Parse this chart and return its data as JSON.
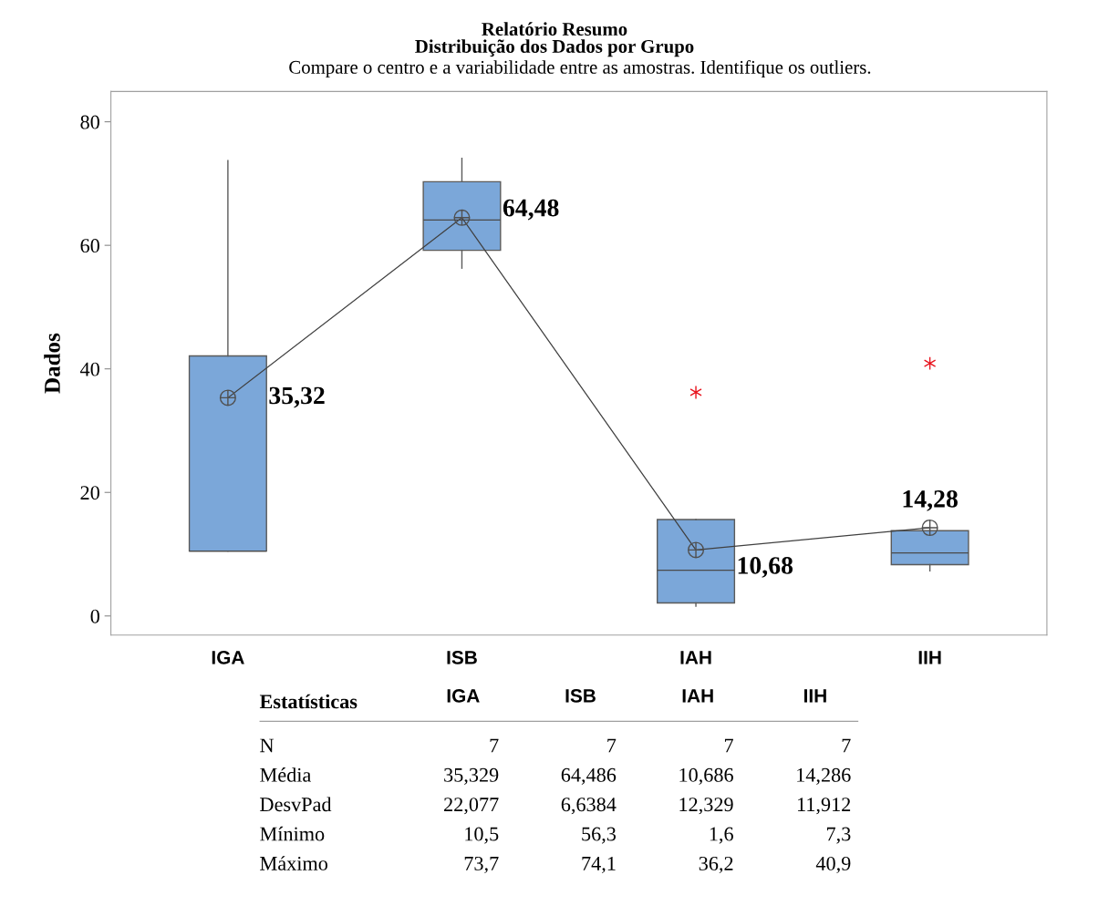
{
  "chart_data": [
    {
      "type": "box",
      "title": "Relatório Resumo",
      "subtitle": "Distribuição dos Dados por Grupo",
      "annotations": [
        "Compare o centro e a variabilidade entre as amostras. Identifique os outliers."
      ],
      "ylabel": "Dados",
      "categories": [
        "IGA",
        "ISB",
        "IAH",
        "IIH"
      ],
      "ylim": [
        -3.1,
        84.9
      ],
      "yticks": [
        0,
        20,
        40,
        60,
        80
      ],
      "grid": false,
      "series": [
        {
          "type": "box",
          "color": "#7ba7d9",
          "boxes": [
            {
              "low": 10.5,
              "q1": 10.5,
              "median": 10.5,
              "q3": 42.1,
              "high": 73.7
            },
            {
              "low": 56.3,
              "q1": 59.2,
              "median": 64.1,
              "q3": 70.3,
              "high": 74.1
            },
            {
              "low": 1.6,
              "q1": 2.1,
              "median": 7.4,
              "q3": 15.6,
              "high": 15.6,
              "outliers": [
                36.2
              ]
            },
            {
              "low": 7.3,
              "q1": 8.3,
              "median": 10.2,
              "q3": 13.8,
              "high": 13.8,
              "outliers": [
                40.9
              ]
            }
          ]
        },
        {
          "type": "line",
          "color": "#404040",
          "values": [
            35.32,
            64.48,
            10.68,
            14.28
          ],
          "value_labels": [
            "35,32",
            "64,48",
            "10,68",
            "14,28"
          ],
          "marker": "cross"
        }
      ]
    },
    {
      "type": "other",
      "title": "Estatísticas",
      "categories": [
        "IGA",
        "ISB",
        "IAH",
        "IIH"
      ],
      "y_categories": [
        "N",
        "Média",
        "DesvPad",
        "Mínimo",
        "Máximo"
      ],
      "cell_labels": [
        [
          "7",
          "7",
          "7",
          "7"
        ],
        [
          "35,329",
          "64,486",
          "10,686",
          "14,286"
        ],
        [
          "22,077",
          "6,6384",
          "12,329",
          "11,912"
        ],
        [
          "10,5",
          "56,3",
          "1,6",
          "7,3"
        ],
        [
          "73,7",
          "74,1",
          "36,2",
          "40,9"
        ]
      ]
    }
  ]
}
